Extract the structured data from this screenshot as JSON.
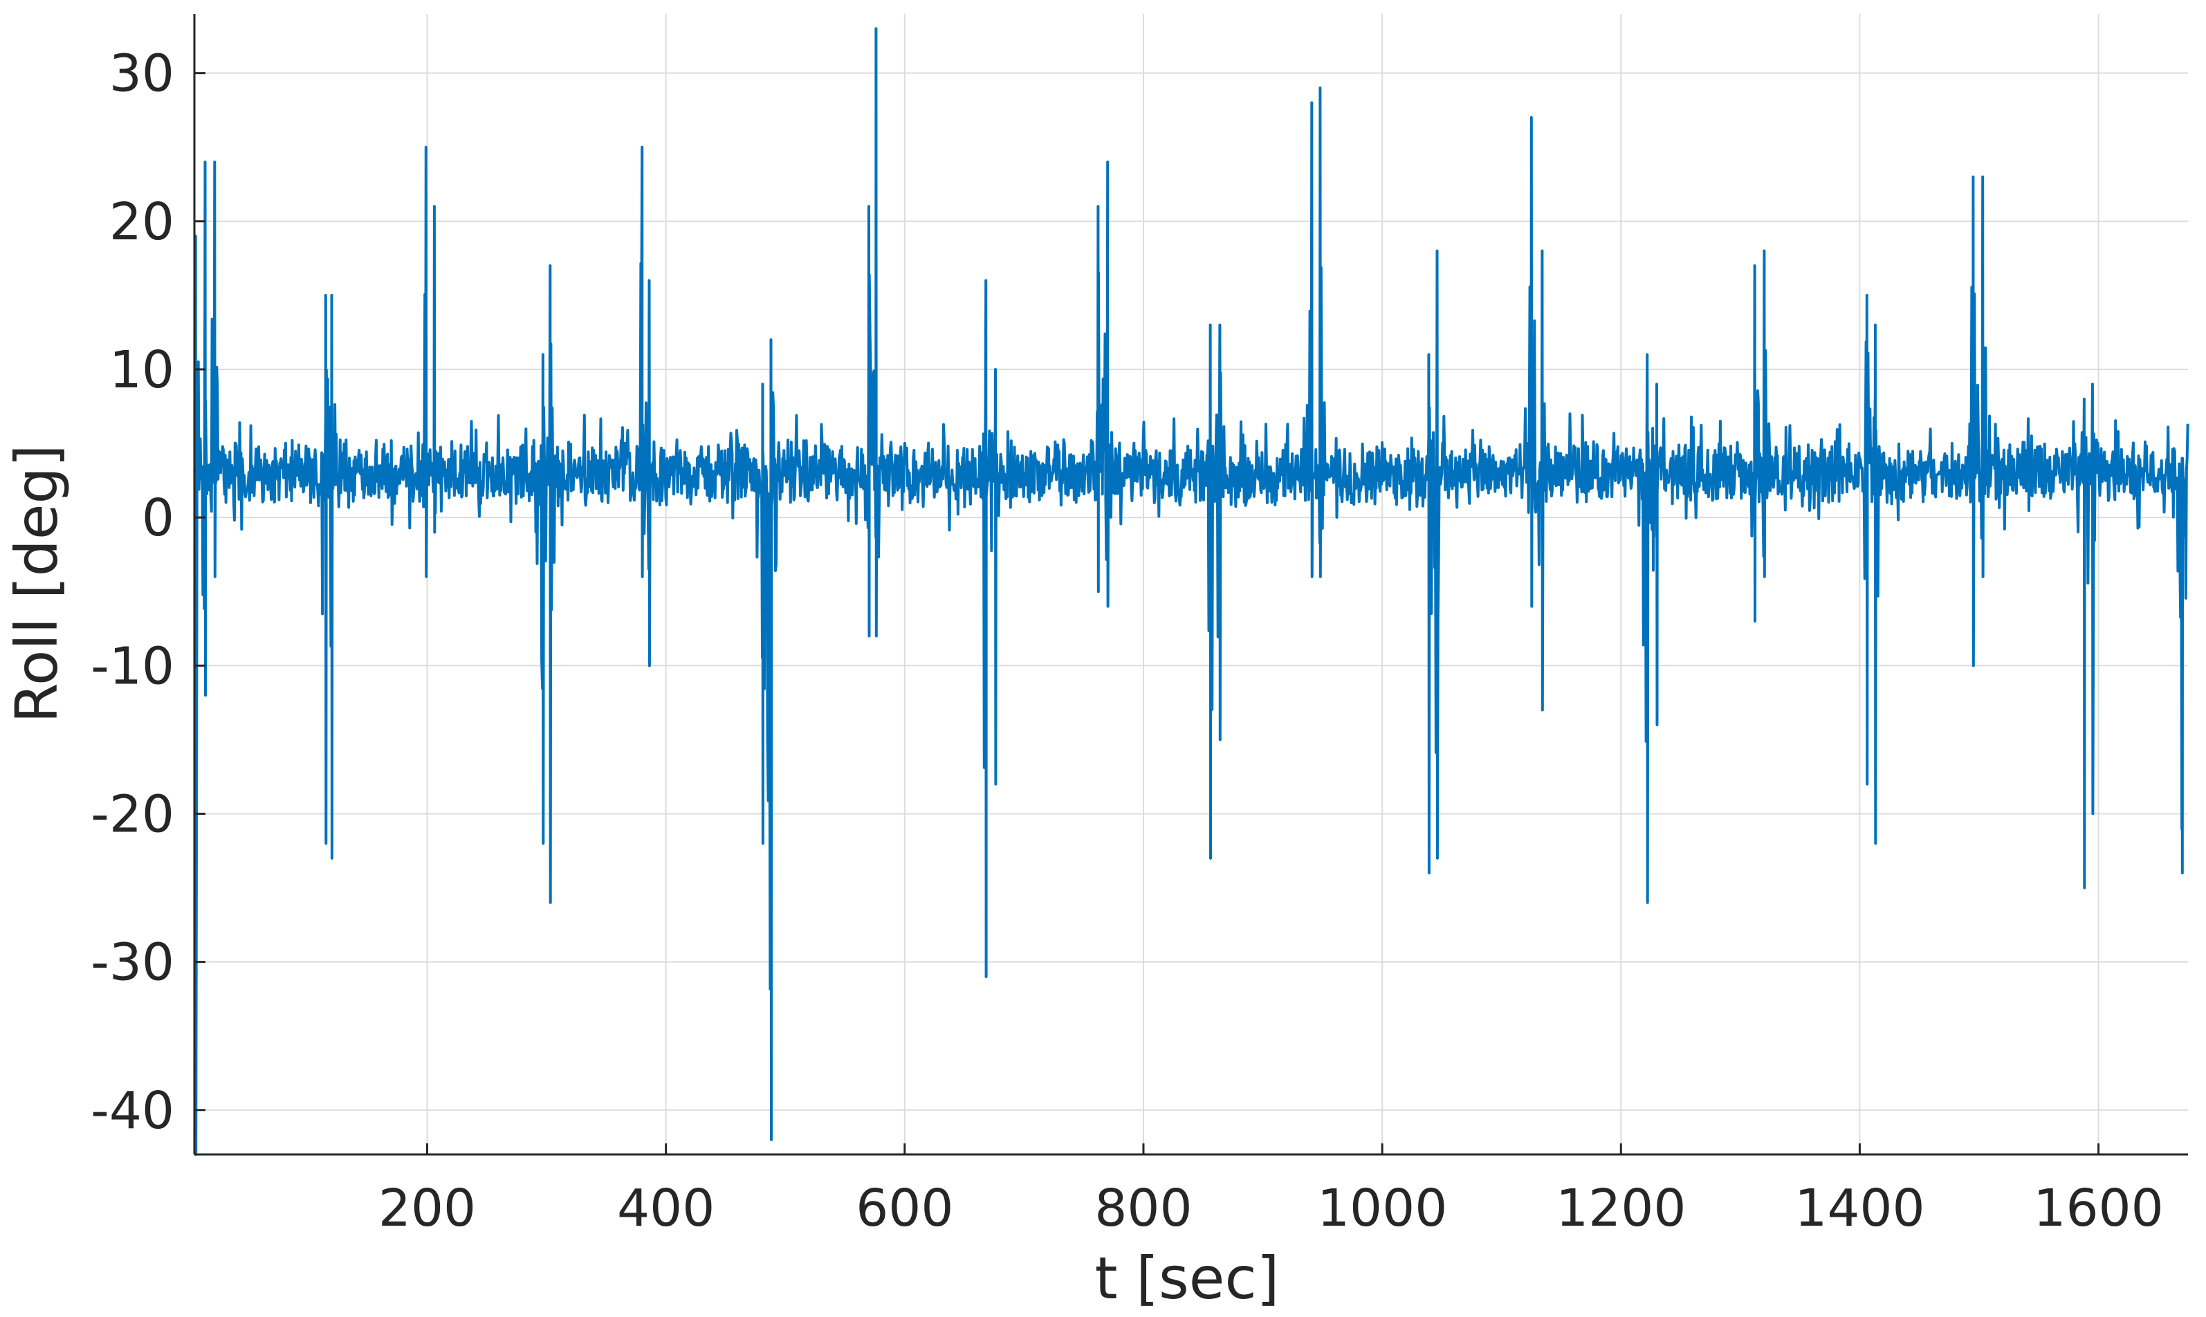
{
  "chart_data": {
    "type": "line",
    "title": "",
    "xlabel": "t [sec]",
    "ylabel": "Roll [deg]",
    "xlim": [
      5,
      1675
    ],
    "ylim": [
      -43,
      34
    ],
    "xticks": [
      200,
      400,
      600,
      800,
      1000,
      1200,
      1400,
      1600
    ],
    "yticks": [
      30,
      20,
      10,
      0,
      -10,
      -20,
      -30,
      -40
    ],
    "xtick_labels": [
      "200",
      "400",
      "600",
      "800",
      "1000",
      "1200",
      "1400",
      "1600"
    ],
    "ytick_labels": [
      "30",
      "20",
      "10",
      "0",
      "-10",
      "-20",
      "-30",
      "-40"
    ],
    "grid": true,
    "line_color": "#0072bd",
    "baseline_mean_deg": 3,
    "baseline_band_deg": [
      -1,
      7
    ],
    "spikes": [
      {
        "t": 6,
        "max": 19,
        "min": -43
      },
      {
        "t": 14,
        "max": 24,
        "min": -12
      },
      {
        "t": 22,
        "max": 24,
        "min": -4
      },
      {
        "t": 115,
        "max": 15,
        "min": -22
      },
      {
        "t": 120,
        "max": 15,
        "min": -23
      },
      {
        "t": 199,
        "max": 25,
        "min": -4
      },
      {
        "t": 206,
        "max": 21,
        "min": -1
      },
      {
        "t": 297,
        "max": 11,
        "min": -22
      },
      {
        "t": 303,
        "max": 17,
        "min": -26
      },
      {
        "t": 380,
        "max": 25,
        "min": -4
      },
      {
        "t": 386,
        "max": 16,
        "min": -10
      },
      {
        "t": 481,
        "max": 9,
        "min": -22
      },
      {
        "t": 488,
        "max": 12,
        "min": -42
      },
      {
        "t": 570,
        "max": 21,
        "min": -8
      },
      {
        "t": 576,
        "max": 33,
        "min": -8
      },
      {
        "t": 668,
        "max": 16,
        "min": -31
      },
      {
        "t": 676,
        "max": 10,
        "min": -18
      },
      {
        "t": 762,
        "max": 21,
        "min": -5
      },
      {
        "t": 770,
        "max": 24,
        "min": -6
      },
      {
        "t": 856,
        "max": 13,
        "min": -23
      },
      {
        "t": 864,
        "max": 13,
        "min": -15
      },
      {
        "t": 941,
        "max": 28,
        "min": -4
      },
      {
        "t": 948,
        "max": 29,
        "min": -4
      },
      {
        "t": 1039,
        "max": 11,
        "min": -24
      },
      {
        "t": 1046,
        "max": 18,
        "min": -23
      },
      {
        "t": 1125,
        "max": 27,
        "min": -6
      },
      {
        "t": 1134,
        "max": 18,
        "min": -13
      },
      {
        "t": 1222,
        "max": 11,
        "min": -26
      },
      {
        "t": 1230,
        "max": 9,
        "min": -14
      },
      {
        "t": 1312,
        "max": 17,
        "min": -7
      },
      {
        "t": 1320,
        "max": 18,
        "min": -4
      },
      {
        "t": 1406,
        "max": 15,
        "min": -18
      },
      {
        "t": 1413,
        "max": 13,
        "min": -22
      },
      {
        "t": 1495,
        "max": 23,
        "min": -10
      },
      {
        "t": 1503,
        "max": 23,
        "min": -4
      },
      {
        "t": 1588,
        "max": 8,
        "min": -25
      },
      {
        "t": 1595,
        "max": 9,
        "min": -20
      },
      {
        "t": 1670,
        "max": 4,
        "min": -24
      }
    ]
  }
}
